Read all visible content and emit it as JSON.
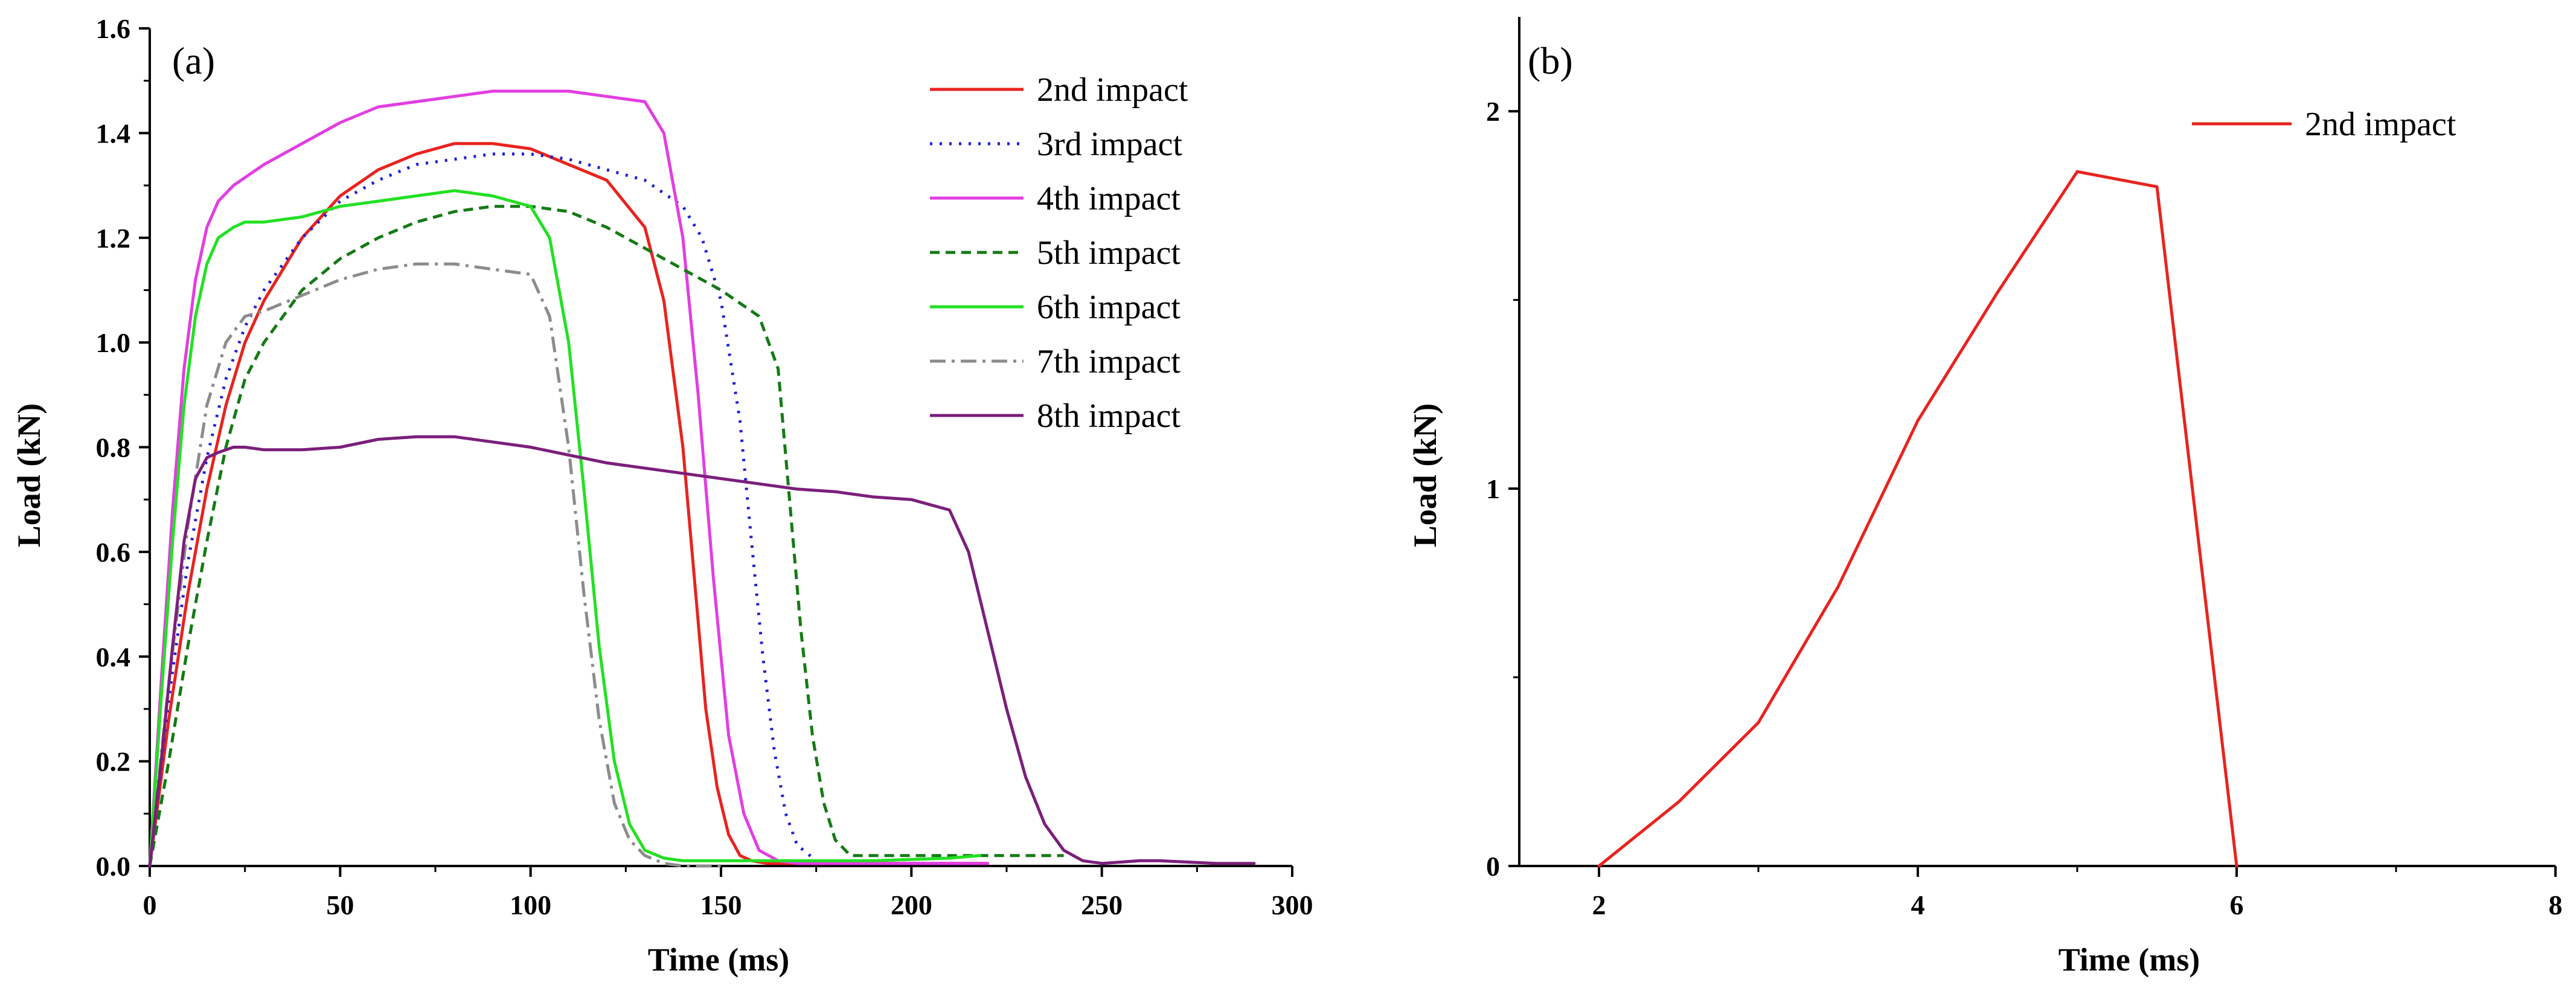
{
  "chart_data": [
    {
      "panel_label": "(a)",
      "type": "line",
      "xlabel": "Time (ms)",
      "ylabel": "Load (kN)",
      "xlim": [
        0,
        300
      ],
      "ylim": [
        0,
        1.6
      ],
      "xticks": [
        0,
        50,
        100,
        150,
        200,
        250,
        300
      ],
      "xtick_labels": [
        "0",
        "50",
        "100",
        "150",
        "200",
        "250",
        "300"
      ],
      "yticks": [
        0,
        0.2,
        0.4,
        0.6,
        0.8,
        1.0,
        1.2,
        1.4,
        1.6
      ],
      "ytick_labels": [
        "0.0",
        "0.2",
        "0.4",
        "0.6",
        "0.8",
        "1.0",
        "1.2",
        "1.4",
        "1.6"
      ],
      "legend_position": "top-right",
      "series": [
        {
          "name": "2nd impact",
          "color": "#e8231f",
          "style": "solid",
          "x": [
            0,
            5,
            10,
            15,
            20,
            25,
            30,
            40,
            50,
            60,
            70,
            80,
            90,
            100,
            110,
            120,
            130,
            135,
            140,
            143,
            146,
            149,
            152,
            155,
            158,
            162,
            170,
            180,
            200,
            220
          ],
          "y": [
            0,
            0.28,
            0.52,
            0.72,
            0.88,
            1.0,
            1.08,
            1.2,
            1.28,
            1.33,
            1.36,
            1.38,
            1.38,
            1.37,
            1.34,
            1.31,
            1.22,
            1.08,
            0.8,
            0.55,
            0.3,
            0.15,
            0.06,
            0.02,
            0.01,
            0.005,
            0.005,
            0.005,
            0.005,
            0.005
          ]
        },
        {
          "name": "3rd impact",
          "color": "#1f1fd6",
          "style": "dotted",
          "x": [
            0,
            5,
            10,
            15,
            20,
            25,
            30,
            40,
            50,
            60,
            70,
            80,
            90,
            100,
            110,
            120,
            130,
            140,
            145,
            150,
            155,
            158,
            161,
            164,
            167,
            170,
            175,
            180,
            200,
            220
          ],
          "y": [
            0,
            0.32,
            0.58,
            0.78,
            0.93,
            1.03,
            1.1,
            1.2,
            1.27,
            1.31,
            1.34,
            1.35,
            1.36,
            1.36,
            1.35,
            1.33,
            1.31,
            1.26,
            1.2,
            1.08,
            0.85,
            0.62,
            0.4,
            0.22,
            0.1,
            0.04,
            0.01,
            0.005,
            0.005,
            0.005
          ]
        },
        {
          "name": "4th impact",
          "color": "#e23ee2",
          "style": "solid",
          "x": [
            0,
            3,
            6,
            9,
            12,
            15,
            18,
            22,
            26,
            30,
            40,
            50,
            60,
            70,
            80,
            90,
            100,
            110,
            120,
            130,
            135,
            140,
            144,
            148,
            152,
            156,
            160,
            165,
            170,
            180,
            200,
            220
          ],
          "y": [
            0,
            0.35,
            0.68,
            0.95,
            1.12,
            1.22,
            1.27,
            1.3,
            1.32,
            1.34,
            1.38,
            1.42,
            1.45,
            1.46,
            1.47,
            1.48,
            1.48,
            1.48,
            1.47,
            1.46,
            1.4,
            1.2,
            0.9,
            0.55,
            0.25,
            0.1,
            0.03,
            0.01,
            0.005,
            0.005,
            0.005,
            0.005
          ]
        },
        {
          "name": "5th impact",
          "color": "#157a15",
          "style": "dashed",
          "x": [
            0,
            5,
            10,
            15,
            20,
            25,
            30,
            40,
            50,
            60,
            70,
            80,
            90,
            100,
            110,
            120,
            130,
            140,
            150,
            160,
            165,
            168,
            171,
            174,
            177,
            180,
            184,
            190,
            200,
            220,
            240
          ],
          "y": [
            0,
            0.2,
            0.42,
            0.62,
            0.8,
            0.93,
            1.0,
            1.1,
            1.16,
            1.2,
            1.23,
            1.25,
            1.26,
            1.26,
            1.25,
            1.22,
            1.18,
            1.14,
            1.1,
            1.05,
            0.95,
            0.7,
            0.45,
            0.25,
            0.12,
            0.05,
            0.02,
            0.02,
            0.02,
            0.02,
            0.02
          ]
        },
        {
          "name": "6th impact",
          "color": "#23e023",
          "style": "solid",
          "x": [
            0,
            3,
            6,
            9,
            12,
            15,
            18,
            22,
            25,
            30,
            40,
            50,
            60,
            70,
            80,
            90,
            100,
            105,
            110,
            114,
            118,
            122,
            126,
            130,
            135,
            140,
            150,
            170,
            190,
            210,
            218
          ],
          "y": [
            0,
            0.32,
            0.62,
            0.88,
            1.05,
            1.15,
            1.2,
            1.22,
            1.23,
            1.23,
            1.24,
            1.26,
            1.27,
            1.28,
            1.29,
            1.28,
            1.26,
            1.2,
            1.0,
            0.72,
            0.42,
            0.2,
            0.08,
            0.03,
            0.015,
            0.01,
            0.01,
            0.01,
            0.01,
            0.015,
            0.02
          ]
        },
        {
          "name": "7th impact",
          "color": "#8c8c8c",
          "style": "dashdot",
          "x": [
            0,
            5,
            10,
            15,
            20,
            25,
            30,
            40,
            50,
            60,
            70,
            80,
            90,
            100,
            105,
            110,
            114,
            118,
            122,
            126,
            130,
            135,
            140,
            150
          ],
          "y": [
            0,
            0.35,
            0.65,
            0.88,
            1.0,
            1.05,
            1.06,
            1.09,
            1.12,
            1.14,
            1.15,
            1.15,
            1.14,
            1.13,
            1.05,
            0.8,
            0.52,
            0.28,
            0.12,
            0.05,
            0.02,
            0.005,
            0.0,
            0.0
          ]
        },
        {
          "name": "8th impact",
          "color": "#7b1f7b",
          "style": "solid",
          "x": [
            0,
            3,
            6,
            9,
            12,
            15,
            18,
            22,
            25,
            30,
            40,
            50,
            60,
            70,
            80,
            90,
            100,
            110,
            120,
            130,
            140,
            150,
            160,
            170,
            180,
            190,
            200,
            210,
            215,
            220,
            225,
            230,
            235,
            240,
            245,
            250,
            260,
            265,
            280,
            290
          ],
          "y": [
            0,
            0.2,
            0.42,
            0.62,
            0.74,
            0.78,
            0.79,
            0.8,
            0.8,
            0.795,
            0.795,
            0.8,
            0.815,
            0.82,
            0.82,
            0.81,
            0.8,
            0.785,
            0.77,
            0.76,
            0.75,
            0.74,
            0.73,
            0.72,
            0.715,
            0.705,
            0.7,
            0.68,
            0.6,
            0.45,
            0.3,
            0.17,
            0.08,
            0.03,
            0.01,
            0.005,
            0.01,
            0.01,
            0.005,
            0.005
          ]
        }
      ]
    },
    {
      "panel_label": "(b)",
      "type": "line",
      "xlabel": "Time (ms)",
      "ylabel": "Load (kN)",
      "xlim": [
        1.5,
        8
      ],
      "ylim": [
        0,
        2.25
      ],
      "xticks": [
        2,
        4,
        6,
        8
      ],
      "xtick_labels": [
        "2",
        "4",
        "6",
        "8"
      ],
      "yticks": [
        0,
        1,
        2
      ],
      "ytick_labels": [
        "0",
        "1",
        "2"
      ],
      "legend_position": "top-right",
      "series": [
        {
          "name": "2nd impact",
          "color": "#e8231f",
          "style": "solid",
          "x": [
            2,
            2.5,
            3,
            3.5,
            4,
            4.5,
            5,
            5.5,
            6
          ],
          "y": [
            0,
            0.17,
            0.38,
            0.74,
            1.18,
            1.52,
            1.84,
            1.8,
            0
          ]
        }
      ]
    }
  ]
}
